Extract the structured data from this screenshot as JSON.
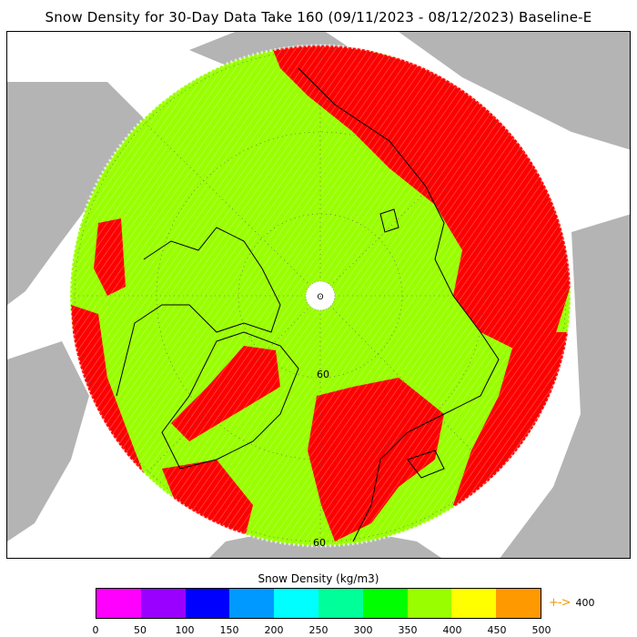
{
  "title": "Snow Density for 30-Day Data Take 160 (09/11/2023 - 08/12/2023) Baseline-E",
  "map": {
    "projection": "north-polar-stereographic",
    "lat_labels": [
      "60",
      "60"
    ],
    "colors": {
      "ocean": "#ffffff",
      "land_outside": "#b4b4b4",
      "data_green": "#99ff00",
      "data_red": "#ff0000",
      "coastline": "#000000",
      "graticule": "#555555"
    }
  },
  "legend": {
    "title": "Snow Density (kg/m3)",
    "colors": [
      "#ff00ff",
      "#9900ff",
      "#0000ff",
      "#0099ff",
      "#00ffff",
      "#00ff99",
      "#00ff00",
      "#99ff00",
      "#ffff00",
      "#ff9900"
    ],
    "ticks": [
      "0",
      "50",
      "100",
      "150",
      "200",
      "250",
      "300",
      "350",
      "400",
      "450",
      "500"
    ],
    "overflow_arrow": "+->",
    "overflow_value": "400"
  }
}
